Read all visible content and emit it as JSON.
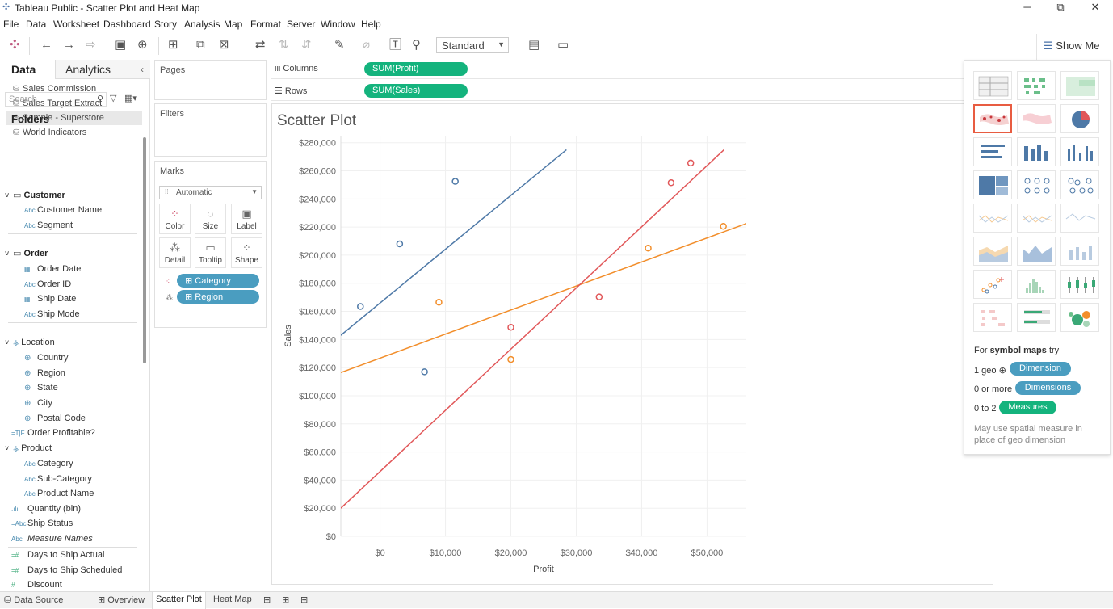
{
  "window": {
    "title": "Tableau Public - Scatter Plot and Heat Map",
    "minimize": "─",
    "restore": "⧉",
    "close": "✕"
  },
  "menu": [
    "File",
    "Data",
    "Worksheet",
    "Dashboard",
    "Story",
    "Analysis",
    "Map",
    "Format",
    "Server",
    "Window",
    "Help"
  ],
  "toolbar": {
    "fit_value": "Standard",
    "show_me_label": "Show Me"
  },
  "left_pane": {
    "tab_data": "Data",
    "tab_analytics": "Analytics",
    "data_sources": [
      "Sales Commission",
      "Sales Target Extract",
      "Sample - Superstore",
      "World Indicators"
    ],
    "search_placeholder": "Search",
    "folders_label": "Folders",
    "groups": {
      "customer": "Customer",
      "order": "Order",
      "location": "Location",
      "product": "Product"
    },
    "fields": {
      "customer_name": "Customer Name",
      "segment": "Segment",
      "order_date": "Order Date",
      "order_id": "Order ID",
      "ship_date": "Ship Date",
      "ship_mode": "Ship Mode",
      "country": "Country",
      "region": "Region",
      "state": "State",
      "city": "City",
      "postal_code": "Postal Code",
      "order_profitable": "Order Profitable?",
      "category": "Category",
      "sub_category": "Sub-Category",
      "product_name": "Product Name",
      "quantity_bin": "Quantity (bin)",
      "ship_status": "Ship Status",
      "measure_names": "Measure Names",
      "days_to_ship_actual": "Days to Ship Actual",
      "days_to_ship_scheduled": "Days to Ship Scheduled",
      "discount": "Discount"
    }
  },
  "cards": {
    "pages": "Pages",
    "filters": "Filters",
    "marks": "Marks",
    "mark_type": "Automatic",
    "mark_buttons": [
      "Color",
      "Size",
      "Label",
      "Detail",
      "Tooltip",
      "Shape"
    ],
    "mark_pills": [
      "Category",
      "Region"
    ]
  },
  "shelves": {
    "columns_label": "Columns",
    "rows_label": "Rows",
    "columns_pill": "SUM(Profit)",
    "rows_pill": "SUM(Sales)"
  },
  "sheet_title": "Scatter Plot",
  "chart_data": {
    "type": "scatter",
    "xlabel": "Profit",
    "ylabel": "Sales",
    "xlim": [
      -6000,
      56000
    ],
    "ylim": [
      0,
      285000
    ],
    "x_ticks": [
      0,
      10000,
      20000,
      30000,
      40000,
      50000
    ],
    "x_tick_labels": [
      "$0",
      "$10,000",
      "$20,000",
      "$30,000",
      "$40,000",
      "$50,000"
    ],
    "y_ticks": [
      0,
      20000,
      40000,
      60000,
      80000,
      100000,
      120000,
      140000,
      160000,
      180000,
      200000,
      220000,
      240000,
      260000,
      280000
    ],
    "y_tick_labels": [
      "$0",
      "$20,000",
      "$40,000",
      "$60,000",
      "$80,000",
      "$100,000",
      "$120,000",
      "$140,000",
      "$160,000",
      "$180,000",
      "$200,000",
      "$220,000",
      "$240,000",
      "$260,000",
      "$280,000"
    ],
    "grid": true,
    "colors": {
      "blue": "#4e79a7",
      "orange": "#f28e2b",
      "red": "#e15759"
    },
    "series": [
      {
        "color_key": "blue",
        "points": [
          [
            -3000,
            163500
          ],
          [
            3000,
            208000
          ],
          [
            6800,
            117000
          ],
          [
            11500,
            252500
          ]
        ],
        "trend": [
          [
            -6000,
            143000
          ],
          [
            28500,
            275000
          ]
        ]
      },
      {
        "color_key": "orange",
        "points": [
          [
            9000,
            166500
          ],
          [
            20000,
            125800
          ],
          [
            41000,
            205000
          ],
          [
            52500,
            220500
          ]
        ],
        "trend": [
          [
            -6000,
            116500
          ],
          [
            56000,
            222500
          ]
        ]
      },
      {
        "color_key": "red",
        "points": [
          [
            20000,
            148700
          ],
          [
            33500,
            170300
          ],
          [
            44500,
            251500
          ],
          [
            47500,
            265500
          ]
        ],
        "trend": [
          [
            -6000,
            20000
          ],
          [
            52600,
            275000
          ]
        ]
      }
    ]
  },
  "show_me": {
    "hint_prefix": "For",
    "hint_bold": "symbol maps",
    "hint_suffix": "try",
    "row1_prefix": "1 geo",
    "row1_pill": "Dimension",
    "row2_prefix": "0 or more",
    "row2_pill": "Dimensions",
    "row3_prefix": "0 to 2",
    "row3_pill": "Measures",
    "note": "May use spatial measure in place of geo dimension"
  },
  "bottom_tabs": {
    "data_source": "Data Source",
    "overview": "Overview",
    "scatter": "Scatter Plot",
    "heat_map": "Heat Map"
  }
}
